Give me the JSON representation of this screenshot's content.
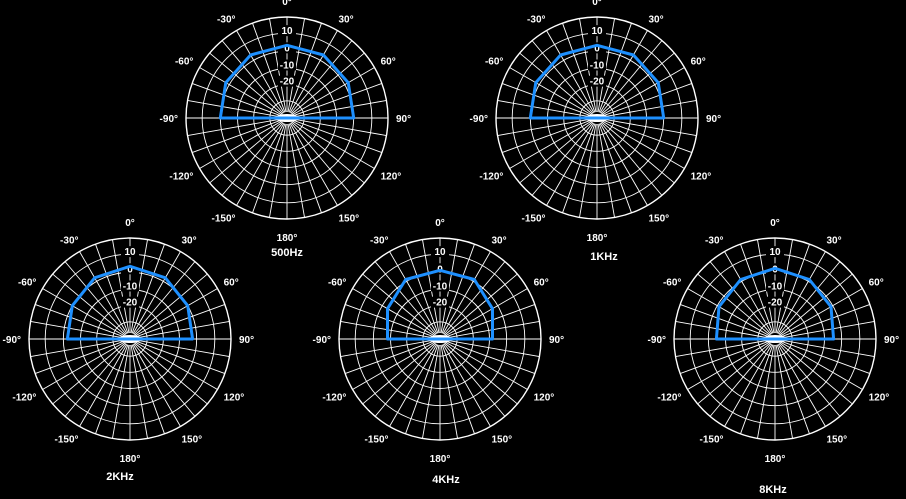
{
  "chart_data": [
    {
      "type": "polar",
      "title": "500Hz",
      "r_range": [
        -30,
        10
      ],
      "radial_ticks": [
        "10",
        "0",
        "-10",
        "-20"
      ],
      "angle_labels": [
        "0°",
        "30°",
        "60°",
        "90°",
        "120°",
        "150°",
        "180°",
        "-150°",
        "-120°",
        "-90°",
        "-60°",
        "-30°"
      ],
      "series": [
        {
          "angles": [
            -90,
            -60,
            -30,
            0,
            30,
            60,
            90
          ],
          "values": [
            0,
            2,
            3,
            3,
            3,
            2,
            0
          ],
          "color": "#1e90ff"
        }
      ]
    },
    {
      "type": "polar",
      "title": "1KHz",
      "r_range": [
        -30,
        10
      ],
      "radial_ticks": [
        "10",
        "0",
        "-10",
        "-20"
      ],
      "angle_labels": [
        "0°",
        "30°",
        "60°",
        "90°",
        "120°",
        "150°",
        "180°",
        "-150°",
        "-120°",
        "-90°",
        "-60°",
        "-30°"
      ],
      "series": [
        {
          "angles": [
            -90,
            -60,
            -30,
            0,
            30,
            60,
            90
          ],
          "values": [
            0,
            2,
            3,
            3,
            3,
            2,
            0
          ],
          "color": "#1e90ff"
        }
      ]
    },
    {
      "type": "polar",
      "title": "2KHz",
      "r_range": [
        -30,
        10
      ],
      "radial_ticks": [
        "10",
        "0",
        "-10",
        "-20"
      ],
      "angle_labels": [
        "0°",
        "30°",
        "60°",
        "90°",
        "120°",
        "150°",
        "180°",
        "-150°",
        "-120°",
        "-90°",
        "-60°",
        "-30°"
      ],
      "series": [
        {
          "angles": [
            -90,
            -60,
            -30,
            0,
            30,
            60,
            90
          ],
          "values": [
            -2,
            0,
            2,
            3,
            2,
            0,
            -2
          ],
          "color": "#1e90ff"
        }
      ]
    },
    {
      "type": "polar",
      "title": "4KHz",
      "r_range": [
        -30,
        10
      ],
      "radial_ticks": [
        "10",
        "0",
        "-10",
        "-20"
      ],
      "angle_labels": [
        "0°",
        "30°",
        "60°",
        "90°",
        "120°",
        "150°",
        "180°",
        "-150°",
        "-120°",
        "-90°",
        "-60°",
        "-30°"
      ],
      "series": [
        {
          "angles": [
            -90,
            -60,
            -30,
            0,
            30,
            60,
            90
          ],
          "values": [
            -7,
            -3,
            1,
            1,
            1,
            -3,
            -7
          ],
          "color": "#1e90ff"
        }
      ]
    },
    {
      "type": "polar",
      "title": "8KHz",
      "r_range": [
        -30,
        10
      ],
      "radial_ticks": [
        "10",
        "0",
        "-10",
        "-20"
      ],
      "angle_labels": [
        "0°",
        "30°",
        "60°",
        "90°",
        "120°",
        "150°",
        "180°",
        "-150°",
        "-120°",
        "-90°",
        "-60°",
        "-30°"
      ],
      "series": [
        {
          "angles": [
            -90,
            -60,
            -30,
            0,
            30,
            60,
            90
          ],
          "values": [
            -4,
            -1,
            1,
            2,
            1,
            -1,
            -4
          ],
          "color": "#1e90ff"
        }
      ]
    }
  ]
}
